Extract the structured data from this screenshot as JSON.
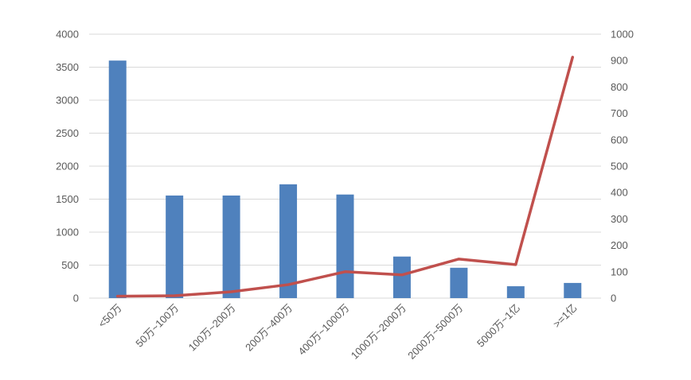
{
  "chart_data": {
    "type": "bar+line",
    "title": "",
    "categories": [
      "<50万",
      "50万~100万",
      "100万~200万",
      "200万~400万",
      "400万~1000万",
      "1000万~2000万",
      "2000万~5000万",
      "5000万~1亿",
      ">=1亿"
    ],
    "series": [
      {
        "type": "bar",
        "axis": "left",
        "color": "#4F81BD",
        "values": [
          3600,
          1555,
          1555,
          1725,
          1570,
          630,
          460,
          180,
          230
        ]
      },
      {
        "type": "line",
        "axis": "right",
        "color": "#C0504D",
        "values": [
          7,
          9,
          24,
          51,
          100,
          88,
          148,
          127,
          913
        ]
      }
    ],
    "y_left": {
      "range": [
        0,
        4000
      ],
      "ticks": [
        "0",
        "500",
        "1000",
        "1500",
        "2000",
        "2500",
        "3000",
        "3500",
        "4000"
      ]
    },
    "y_right": {
      "range": [
        0,
        1000
      ],
      "ticks": [
        "0",
        "100",
        "200",
        "300",
        "400",
        "500",
        "600",
        "700",
        "800",
        "900",
        "1000"
      ]
    },
    "grid": true,
    "legend": "none"
  }
}
